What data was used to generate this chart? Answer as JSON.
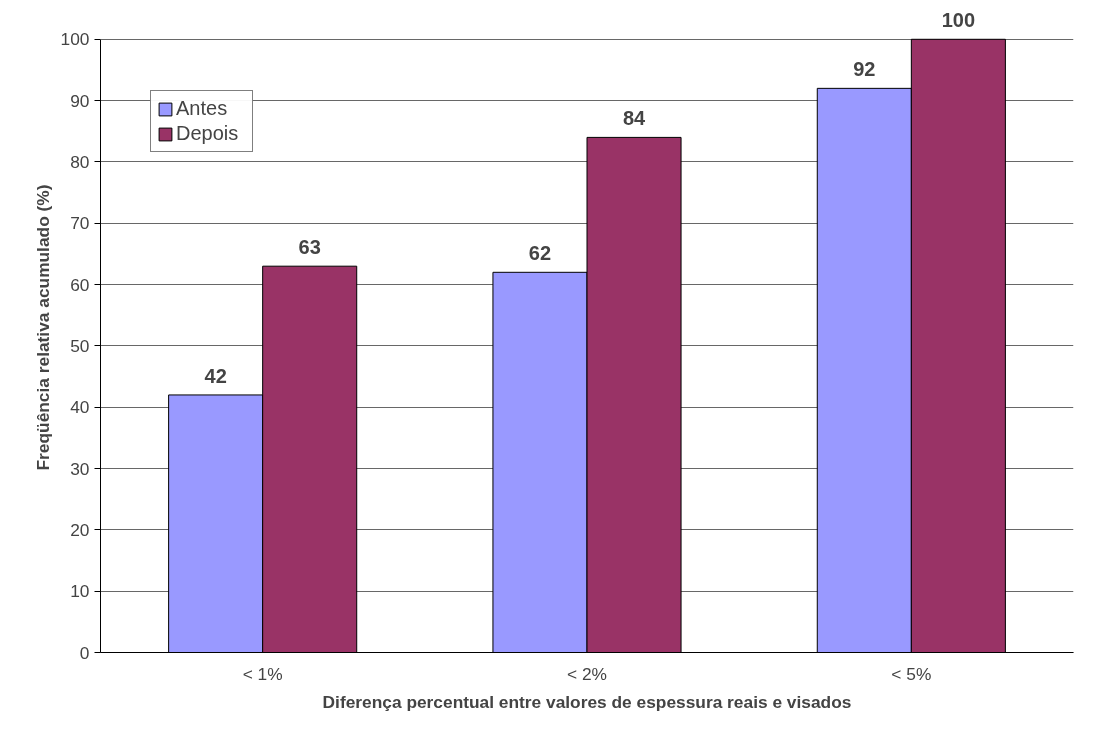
{
  "chart_data": {
    "type": "bar",
    "xlabel": "Diferença percentual entre valores de espessura reais e visados",
    "ylabel": "Freqüência relativa acumulado (%)",
    "categories": [
      "< 1%",
      "< 2%",
      "< 5%"
    ],
    "series": [
      {
        "name": "Antes",
        "color": "#9999ff",
        "values": [
          42,
          62,
          92
        ]
      },
      {
        "name": "Depois",
        "color": "#993366",
        "values": [
          63,
          84,
          100
        ]
      }
    ],
    "ylim": [
      0,
      100
    ],
    "yticks": [
      0,
      10,
      20,
      30,
      40,
      50,
      60,
      70,
      80,
      90,
      100
    ],
    "grid": "y",
    "legend": "top left",
    "data_labels": true
  }
}
